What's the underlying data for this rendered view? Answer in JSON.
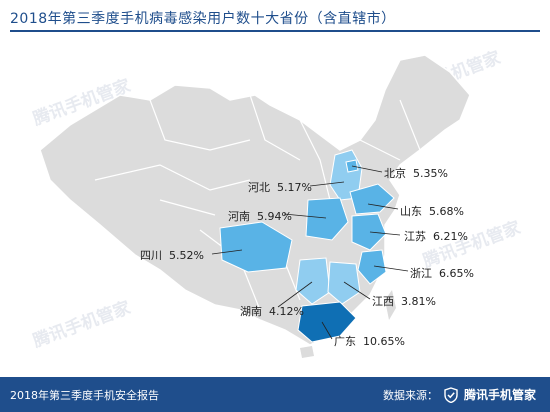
{
  "title": "2018年第三季度手机病毒感染用户数十大省份（含直辖市）",
  "watermarks": [
    "腾讯手机管家",
    "腾讯手机管家",
    "腾讯手机管家",
    "腾讯手机管家"
  ],
  "colors": {
    "brand": "#1f4e8c",
    "base_land": "#dcdcdc",
    "border": "#ffffff",
    "light": "#90cdf0",
    "mid": "#59b3e6",
    "dark": "#0f6fb4"
  },
  "provinces": [
    {
      "name": "北京",
      "value": "5.35%",
      "shade": "mid"
    },
    {
      "name": "河北",
      "value": "5.17%",
      "shade": "light"
    },
    {
      "name": "山东",
      "value": "5.68%",
      "shade": "mid"
    },
    {
      "name": "河南",
      "value": "5.94%",
      "shade": "mid"
    },
    {
      "name": "江苏",
      "value": "6.21%",
      "shade": "mid"
    },
    {
      "name": "四川",
      "value": "5.52%",
      "shade": "mid"
    },
    {
      "name": "浙江",
      "value": "6.65%",
      "shade": "mid"
    },
    {
      "name": "江西",
      "value": "3.81%",
      "shade": "light"
    },
    {
      "name": "湖南",
      "value": "4.12%",
      "shade": "light"
    },
    {
      "name": "广东",
      "value": "10.65%",
      "shade": "dark"
    }
  ],
  "footer": {
    "report": "2018年第三季度手机安全报告",
    "source_label": "数据来源：",
    "brand": "腾讯手机管家"
  }
}
